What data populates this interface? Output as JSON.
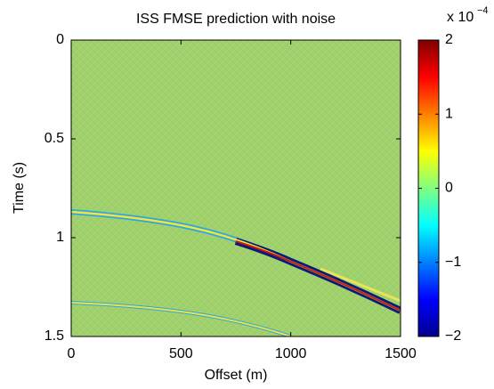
{
  "chart_data": {
    "type": "heatmap",
    "title": "ISS FMSE prediction with noise",
    "x_label": "Offset (m)",
    "y_label": "Time (s)",
    "xlim": [
      0,
      1500
    ],
    "xticks": [
      0,
      500,
      1000,
      1500
    ],
    "ylim": [
      0,
      1.5
    ],
    "yticks": [
      0,
      0.5,
      1,
      1.5
    ],
    "y_reversed": true,
    "colormap": "jet",
    "clim": [
      -2,
      2
    ],
    "cticks": [
      {
        "value": -2,
        "label": "−2"
      },
      {
        "value": -1,
        "label": "−1"
      },
      0,
      1,
      2
    ],
    "colorbar_scale_label": "x 10",
    "colorbar_scale_exponent": "−4"
  }
}
